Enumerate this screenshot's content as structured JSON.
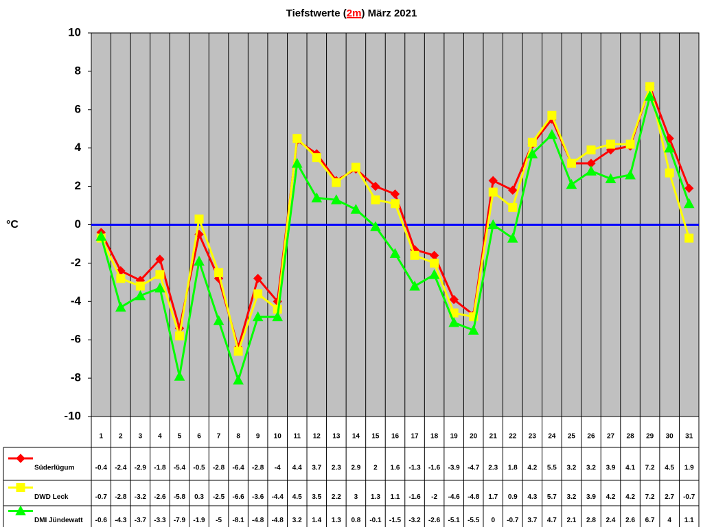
{
  "chart_data": {
    "type": "line",
    "title": {
      "before": "Tiefstwerte (",
      "highlight": "2m",
      "after": ") März 2021"
    },
    "y_label": "°C",
    "categories": [
      "1",
      "2",
      "3",
      "4",
      "5",
      "6",
      "7",
      "8",
      "9",
      "10",
      "11",
      "12",
      "13",
      "14",
      "15",
      "16",
      "17",
      "18",
      "19",
      "20",
      "21",
      "22",
      "23",
      "24",
      "25",
      "26",
      "27",
      "28",
      "29",
      "30",
      "31"
    ],
    "series": [
      {
        "name": "Süderlügum",
        "color": "#ff0000",
        "marker": "diamond",
        "values": [
          -0.4,
          -2.4,
          -2.9,
          -1.8,
          -5.4,
          -0.5,
          -2.8,
          -6.4,
          -2.8,
          -4,
          4.4,
          3.7,
          2.3,
          2.9,
          2,
          1.6,
          -1.3,
          -1.6,
          -3.9,
          -4.7,
          2.3,
          1.8,
          4.2,
          5.5,
          3.2,
          3.2,
          3.9,
          4.1,
          7.2,
          4.5,
          1.9
        ]
      },
      {
        "name": "DWD Leck",
        "color": "#ffff00",
        "marker": "square",
        "values": [
          -0.7,
          -2.8,
          -3.2,
          -2.6,
          -5.8,
          0.3,
          -2.5,
          -6.6,
          -3.6,
          -4.4,
          4.5,
          3.5,
          2.2,
          3,
          1.3,
          1.1,
          -1.6,
          -2,
          -4.6,
          -4.8,
          1.7,
          0.9,
          4.3,
          5.7,
          3.2,
          3.9,
          4.2,
          4.2,
          7.2,
          2.7,
          -0.7
        ]
      },
      {
        "name": "DMI Jündewatt",
        "color": "#00ff00",
        "marker": "triangle",
        "values": [
          -0.6,
          -4.3,
          -3.7,
          -3.3,
          -7.9,
          -1.9,
          -5,
          -8.1,
          -4.8,
          -4.8,
          3.2,
          1.4,
          1.3,
          0.8,
          -0.1,
          -1.5,
          -3.2,
          -2.6,
          -5.1,
          -5.5,
          0,
          -0.7,
          3.7,
          4.7,
          2.1,
          2.8,
          2.4,
          2.6,
          6.7,
          4,
          1.1
        ]
      }
    ],
    "ylim": [
      -10,
      10
    ],
    "yticks": [
      -10,
      -8,
      -6,
      -4,
      -2,
      0,
      2,
      4,
      6,
      8,
      10
    ],
    "grid": true,
    "plot_background": "#c0c0c0",
    "zero_line_color": "#0000ff"
  }
}
